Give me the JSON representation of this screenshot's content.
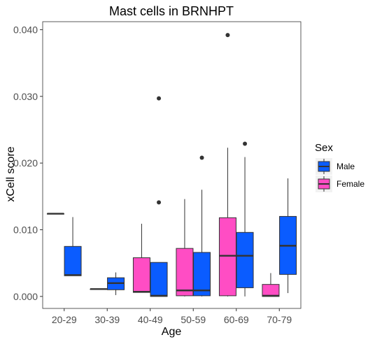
{
  "chart_data": {
    "type": "boxplot",
    "title": "Mast cells in BRNHPT",
    "xlabel": "Age",
    "ylabel": "xCell score",
    "categories": [
      "20-29",
      "30-39",
      "40-49",
      "50-59",
      "60-69",
      "70-79"
    ],
    "ylim": [
      -0.0018,
      0.0412
    ],
    "yticks": [
      0.0,
      0.01,
      0.02,
      0.03,
      0.04
    ],
    "ytick_labels": [
      "0.000",
      "0.010",
      "0.020",
      "0.030",
      "0.040"
    ],
    "grid": false,
    "legend": {
      "title": "Sex",
      "position": "right"
    },
    "series": [
      {
        "name": "Female",
        "color": "#ff4dc4",
        "boxes": [
          {
            "category": "20-29",
            "min": 0.0124,
            "q1": 0.0124,
            "median": 0.0124,
            "q3": 0.0124,
            "max": 0.0124,
            "outliers": []
          },
          {
            "category": "30-39",
            "min": 0.0011,
            "q1": 0.0011,
            "median": 0.0011,
            "q3": 0.0011,
            "max": 0.0011,
            "outliers": []
          },
          {
            "category": "40-49",
            "min": 0.0006,
            "q1": 0.0006,
            "median": 0.0007,
            "q3": 0.0058,
            "max": 0.0109,
            "outliers": []
          },
          {
            "category": "50-59",
            "min": 0.0,
            "q1": 0.0001,
            "median": 0.0009,
            "q3": 0.0072,
            "max": 0.0146,
            "outliers": []
          },
          {
            "category": "60-69",
            "min": 0.0,
            "q1": 0.0001,
            "median": 0.0061,
            "q3": 0.0118,
            "max": 0.0223,
            "outliers": [
              0.0392
            ]
          },
          {
            "category": "70-79",
            "min": 0.0,
            "q1": 0.0,
            "median": 0.0001,
            "q3": 0.0018,
            "max": 0.0035,
            "outliers": []
          }
        ]
      },
      {
        "name": "Male",
        "color": "#0a5cff",
        "boxes": [
          {
            "category": "20-29",
            "min": 0.0031,
            "q1": 0.0031,
            "median": 0.0032,
            "q3": 0.0075,
            "max": 0.0119,
            "outliers": []
          },
          {
            "category": "30-39",
            "min": 0.0002,
            "q1": 0.001,
            "median": 0.002,
            "q3": 0.0028,
            "max": 0.0036,
            "outliers": []
          },
          {
            "category": "40-49",
            "min": 0.0,
            "q1": 0.0,
            "median": 0.0001,
            "q3": 0.0051,
            "max": 0.0051,
            "outliers": [
              0.0141,
              0.0297
            ]
          },
          {
            "category": "50-59",
            "min": 0.0,
            "q1": 0.0001,
            "median": 0.0009,
            "q3": 0.0066,
            "max": 0.016,
            "outliers": [
              0.0208
            ]
          },
          {
            "category": "60-69",
            "min": 0.0,
            "q1": 0.0013,
            "median": 0.0061,
            "q3": 0.0096,
            "max": 0.0209,
            "outliers": [
              0.0229
            ]
          },
          {
            "category": "70-79",
            "min": 0.0005,
            "q1": 0.0033,
            "median": 0.0076,
            "q3": 0.012,
            "max": 0.0177,
            "outliers": []
          }
        ]
      }
    ],
    "legend_entries": [
      {
        "name": "Male",
        "color": "#0a5cff"
      },
      {
        "name": "Female",
        "color": "#ff4dc4"
      }
    ]
  }
}
